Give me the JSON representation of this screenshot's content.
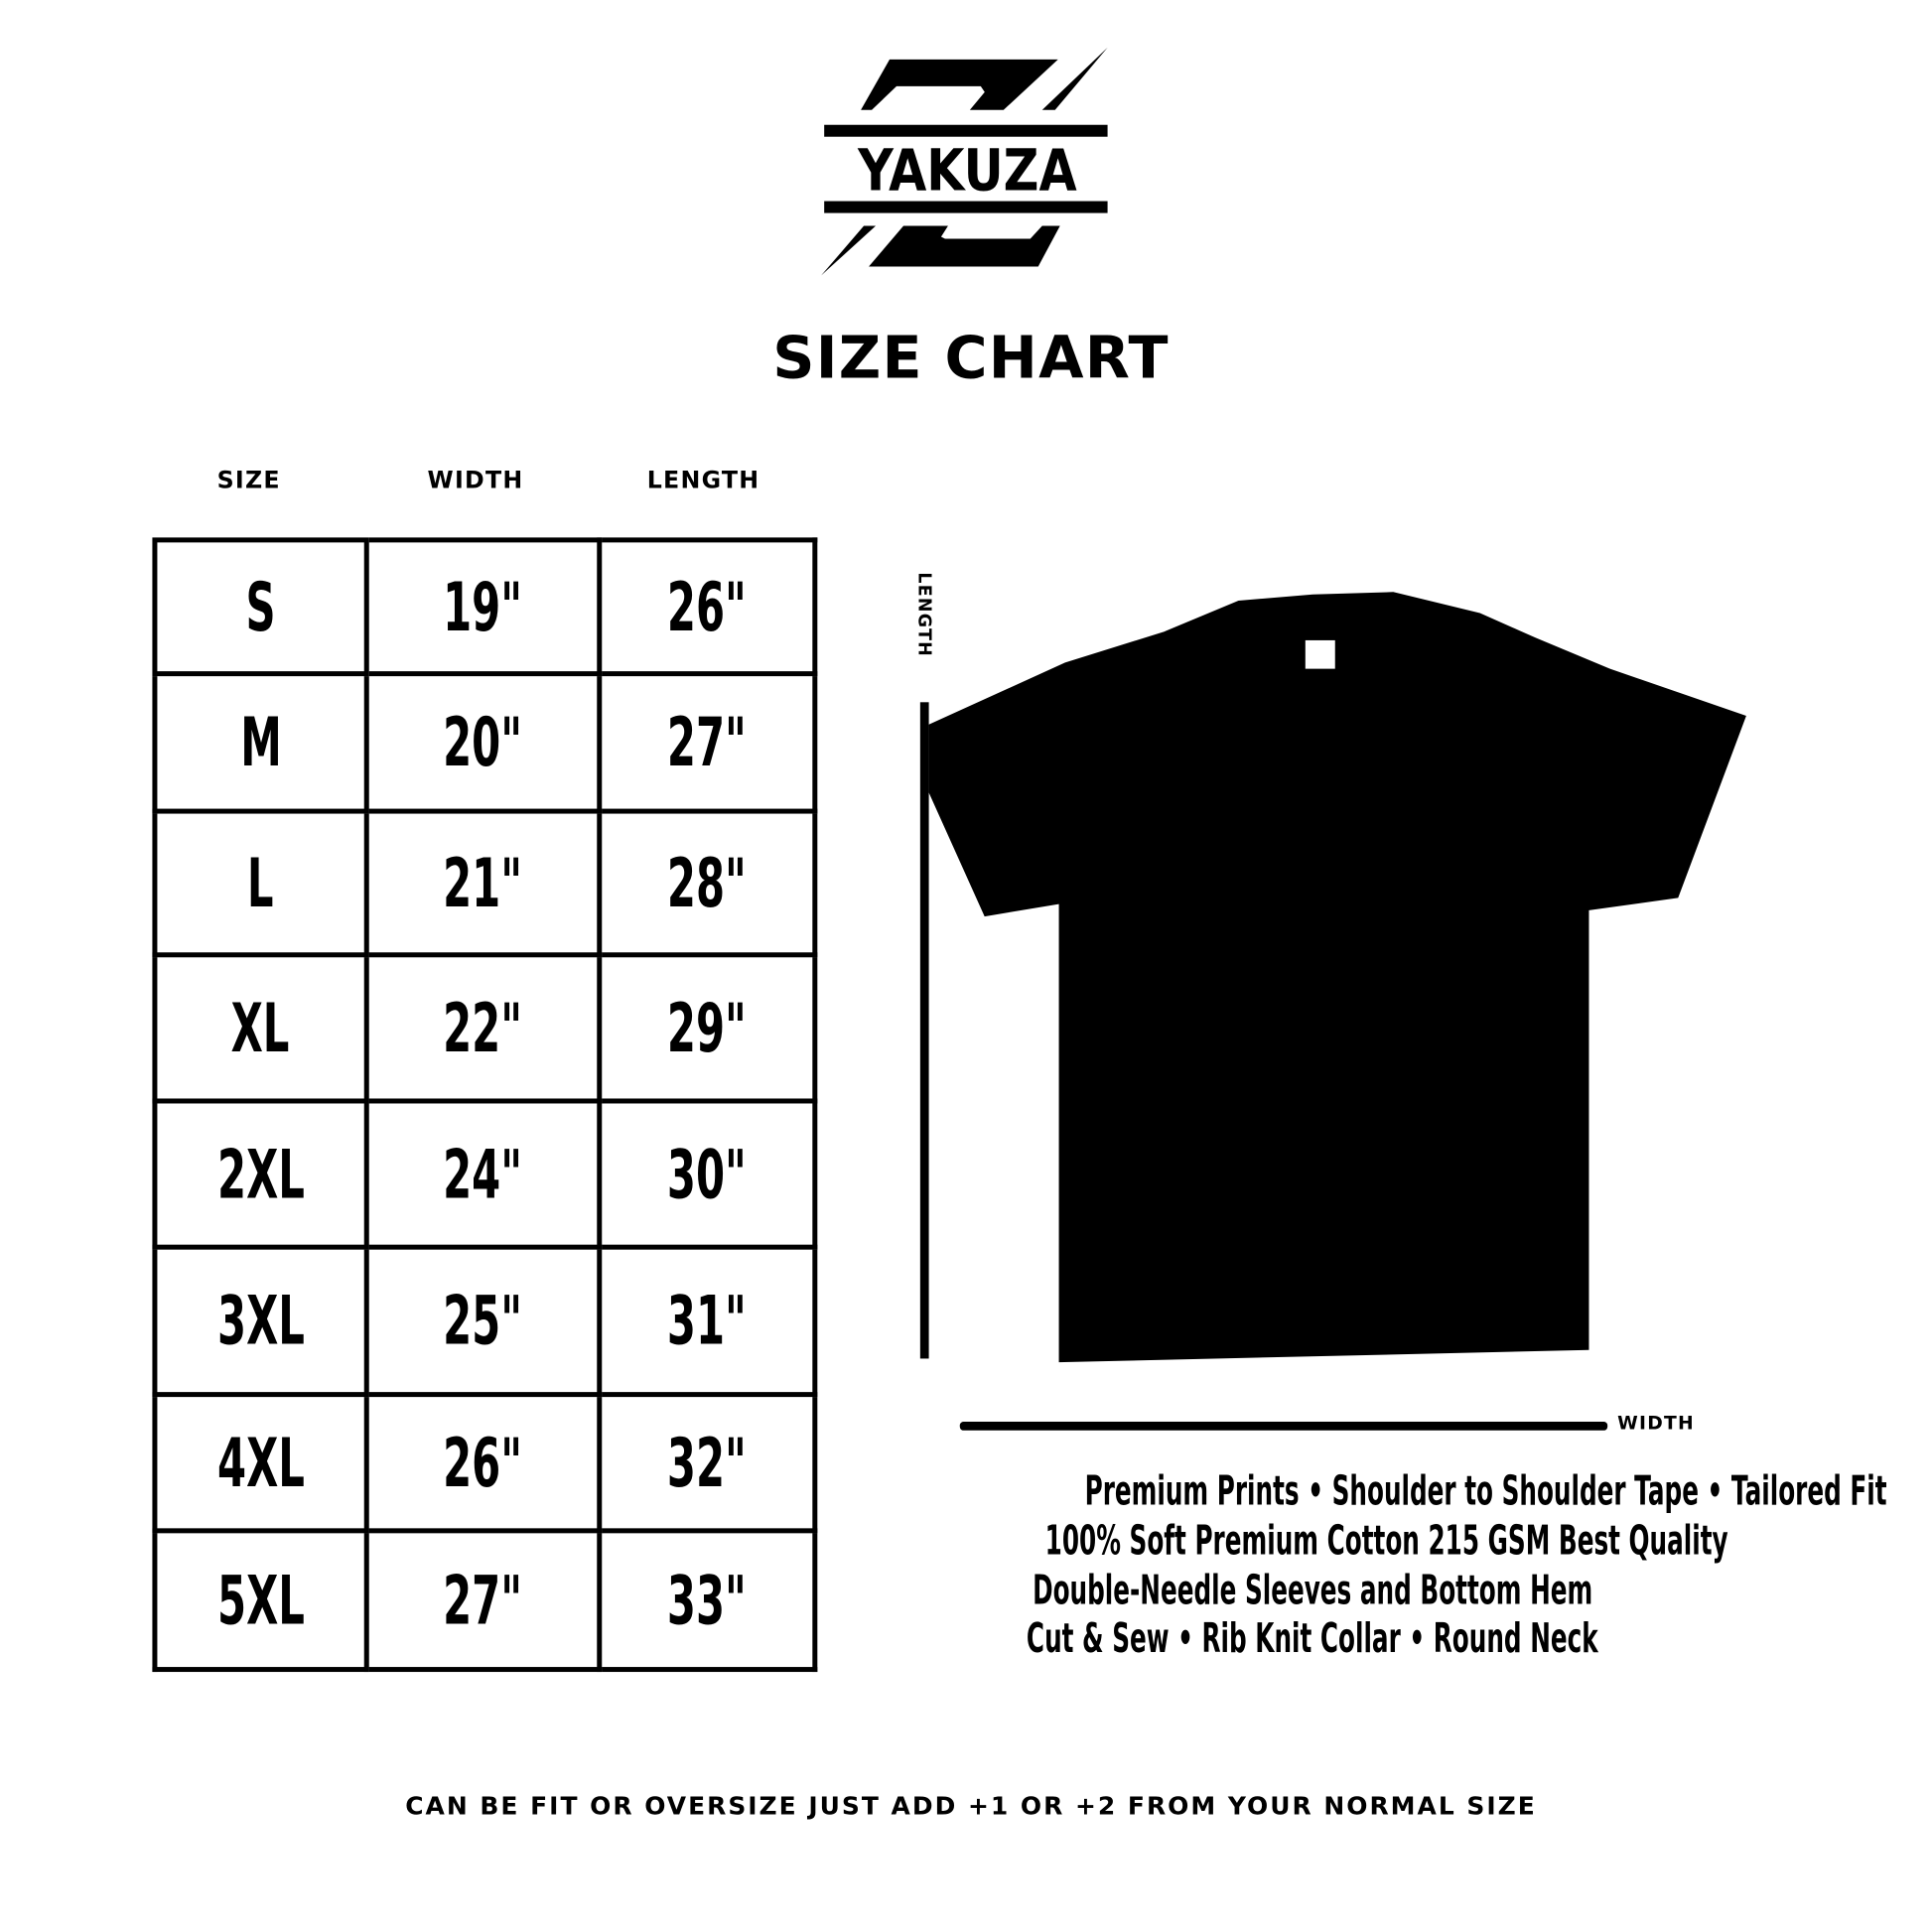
{
  "brand": {
    "logo_text": "YAKUZA"
  },
  "title": "SIZE CHART",
  "table": {
    "headers": [
      "SIZE",
      "WIDTH",
      "LENGTH"
    ],
    "rows": [
      [
        "S",
        "19\"",
        "26\""
      ],
      [
        "M",
        "20\"",
        "27\""
      ],
      [
        "L",
        "21\"",
        "28\""
      ],
      [
        "XL",
        "22\"",
        "29\""
      ],
      [
        "2XL",
        "24\"",
        "30\""
      ],
      [
        "3XL",
        "25\"",
        "31\""
      ],
      [
        "4XL",
        "26\"",
        "32\""
      ],
      [
        "5XL",
        "27\"",
        "33\""
      ]
    ]
  },
  "diagram": {
    "length_label": "LENGTH",
    "width_label": "WIDTH",
    "shirt_color": "#000000"
  },
  "features": [
    "Premium Prints • Shoulder to Shoulder Tape • Tailored Fit",
    "100% Soft Premium Cotton 215 GSM Best Quality",
    "Double-Needle Sleeves and Bottom Hem",
    "Cut & Sew • Rib Knit Collar • Round Neck"
  ],
  "footer": "CAN BE FIT OR OVERSIZE JUST ADD +1 OR +2 FROM YOUR NORMAL SIZE"
}
